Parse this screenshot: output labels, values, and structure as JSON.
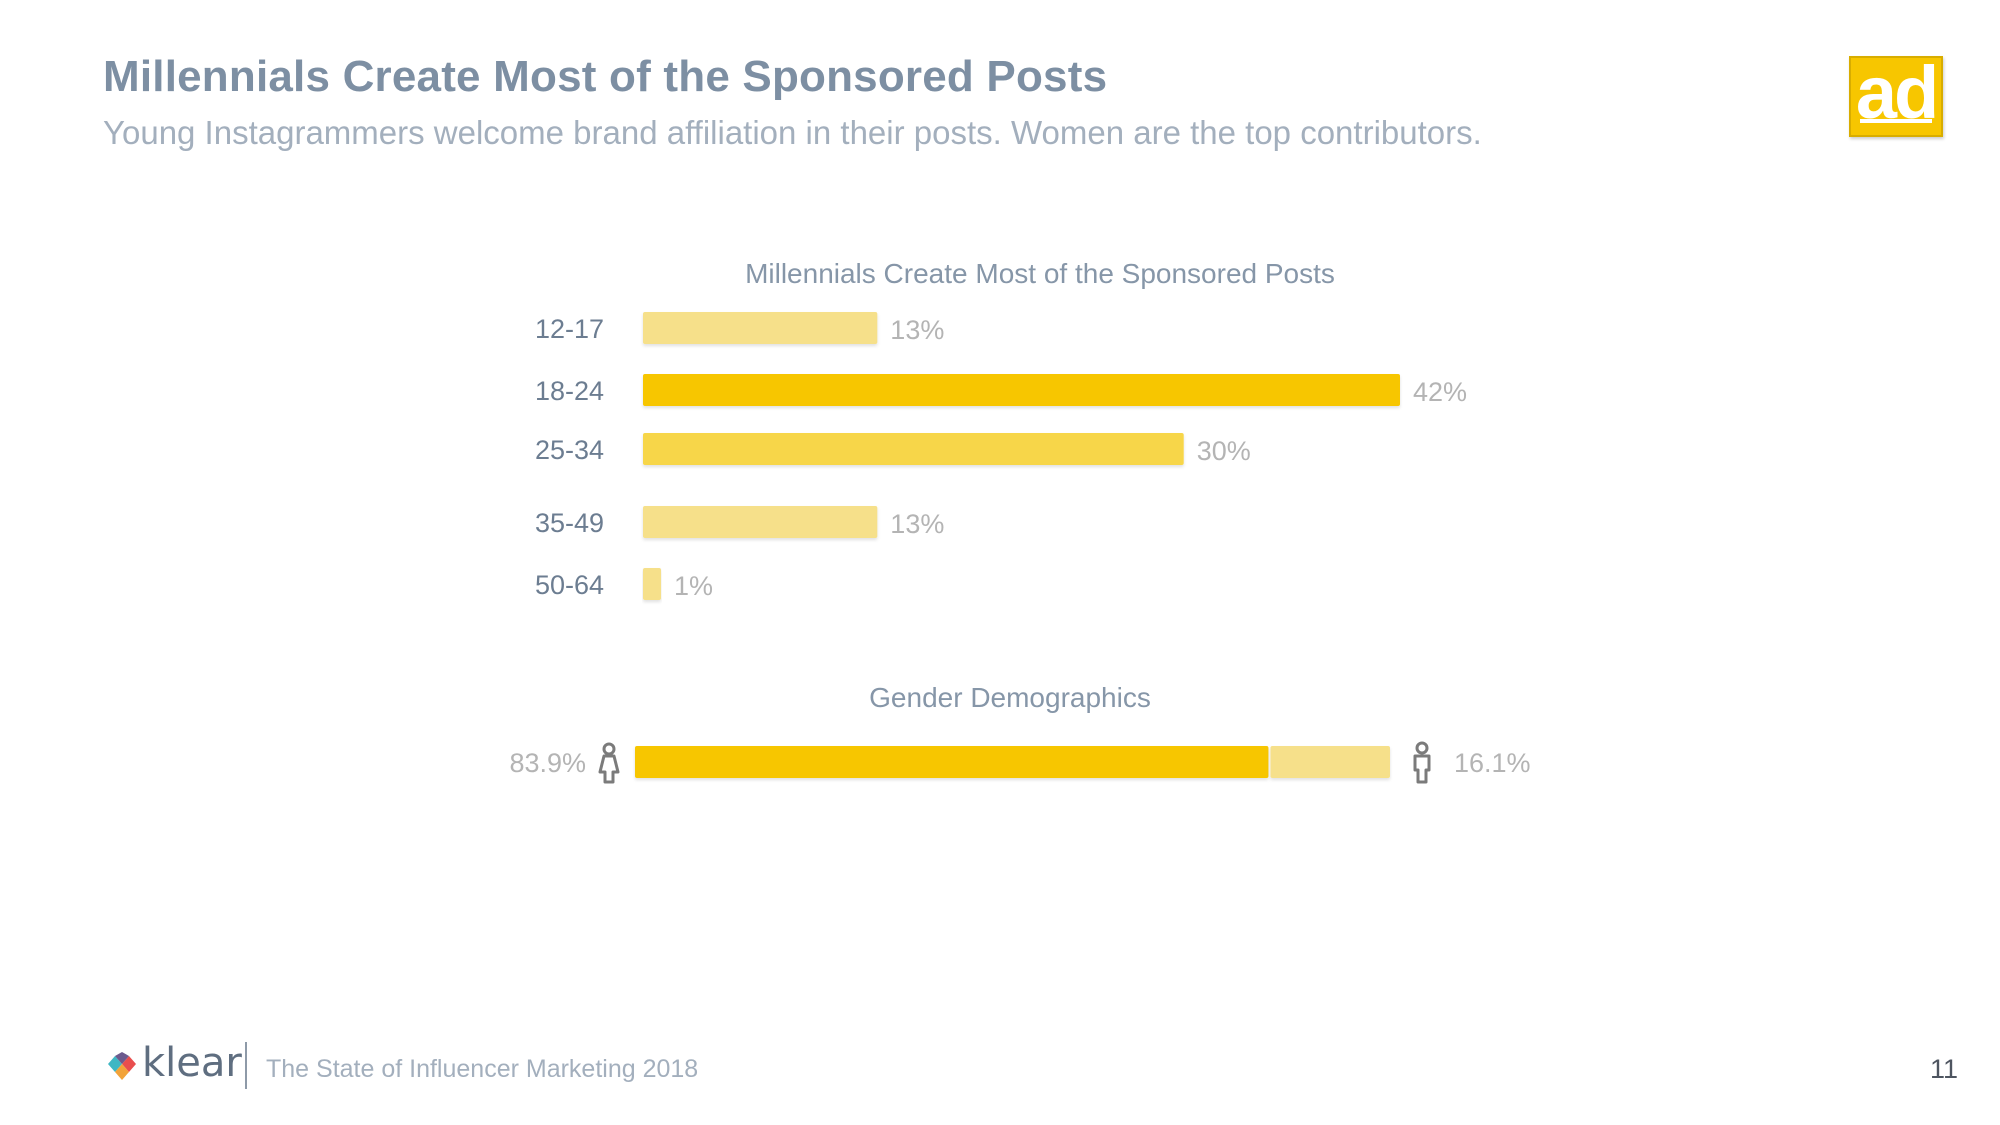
{
  "slide": {
    "title": "Millennials Create Most of the Sponsored Posts",
    "subtitle": "Young Instagrammers welcome brand affiliation in their posts. Women are the top contributors.",
    "badge_text": "ad",
    "footer": {
      "brand": "klear",
      "report": "The State of Influencer Marketing 2018",
      "page_number": "11"
    },
    "colors": {
      "title": "#7d8fa3",
      "accent_yellow": "#f7c600",
      "mid_yellow": "#f7d64a",
      "light_yellow": "#f6e08a"
    }
  },
  "chart_data": [
    {
      "type": "bar",
      "orientation": "horizontal",
      "title": "Millennials Create Most of the Sponsored Posts",
      "categories": [
        "12-17",
        "18-24",
        "25-34",
        "35-49",
        "50-64"
      ],
      "values": [
        13,
        42,
        30,
        13,
        1
      ],
      "labels": [
        "13%",
        "42%",
        "30%",
        "13%",
        "1%"
      ],
      "unit": "%",
      "xlim": [
        0,
        42
      ]
    },
    {
      "type": "bar",
      "orientation": "horizontal",
      "stacked": true,
      "title": "Gender Demographics",
      "series": [
        {
          "name": "female",
          "icon": "female-icon",
          "value": 83.9,
          "label": "83.9%"
        },
        {
          "name": "male",
          "icon": "male-icon",
          "value": 16.1,
          "label": "16.1%"
        }
      ]
    }
  ]
}
